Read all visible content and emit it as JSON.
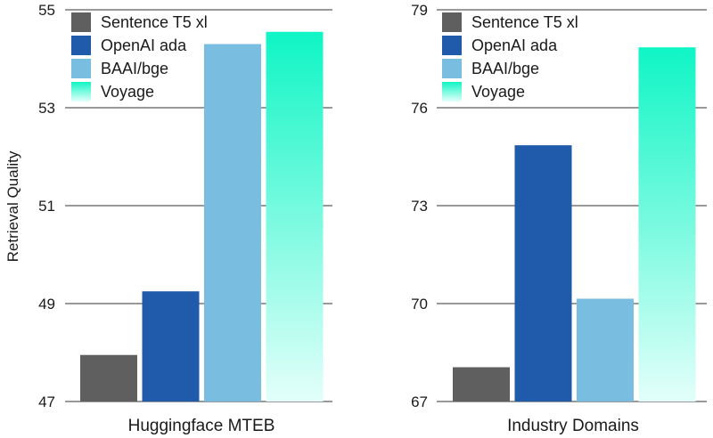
{
  "colors": {
    "sentence_t5": "#5f5f5f",
    "openai": "#1f5aab",
    "baai": "#79bde0",
    "voyage_top": "#0ff5c5",
    "voyage_bottom": "#e3fffa",
    "grid": "#333333"
  },
  "chart_data": [
    {
      "type": "bar",
      "xlabel": "Huggingface MTEB",
      "ylabel": "Retrieval Quality",
      "ylim": [
        47,
        55
      ],
      "yticks": [
        "47",
        "49",
        "51",
        "53",
        "55"
      ],
      "grid": true,
      "legend_position": "top-left",
      "series": [
        {
          "name": "Sentence T5 xl",
          "color_key": "sentence_t5",
          "value": 47.95
        },
        {
          "name": "OpenAI ada",
          "color_key": "openai",
          "value": 49.25
        },
        {
          "name": "BAAI/bge",
          "color_key": "baai",
          "value": 54.3
        },
        {
          "name": "Voyage",
          "color_key": "voyage_top",
          "value": 54.55
        }
      ]
    },
    {
      "type": "bar",
      "xlabel": "Industry Domains",
      "ylabel": "",
      "ylim": [
        67,
        79
      ],
      "yticks": [
        "67",
        "70",
        "73",
        "76",
        "79"
      ],
      "grid": true,
      "legend_position": "top-left",
      "series": [
        {
          "name": "Sentence T5 xl",
          "color_key": "sentence_t5",
          "value": 68.05
        },
        {
          "name": "OpenAI ada",
          "color_key": "openai",
          "value": 74.85
        },
        {
          "name": "BAAI/bge",
          "color_key": "baai",
          "value": 70.15
        },
        {
          "name": "Voyage",
          "color_key": "voyage_top",
          "value": 77.85
        }
      ]
    }
  ]
}
